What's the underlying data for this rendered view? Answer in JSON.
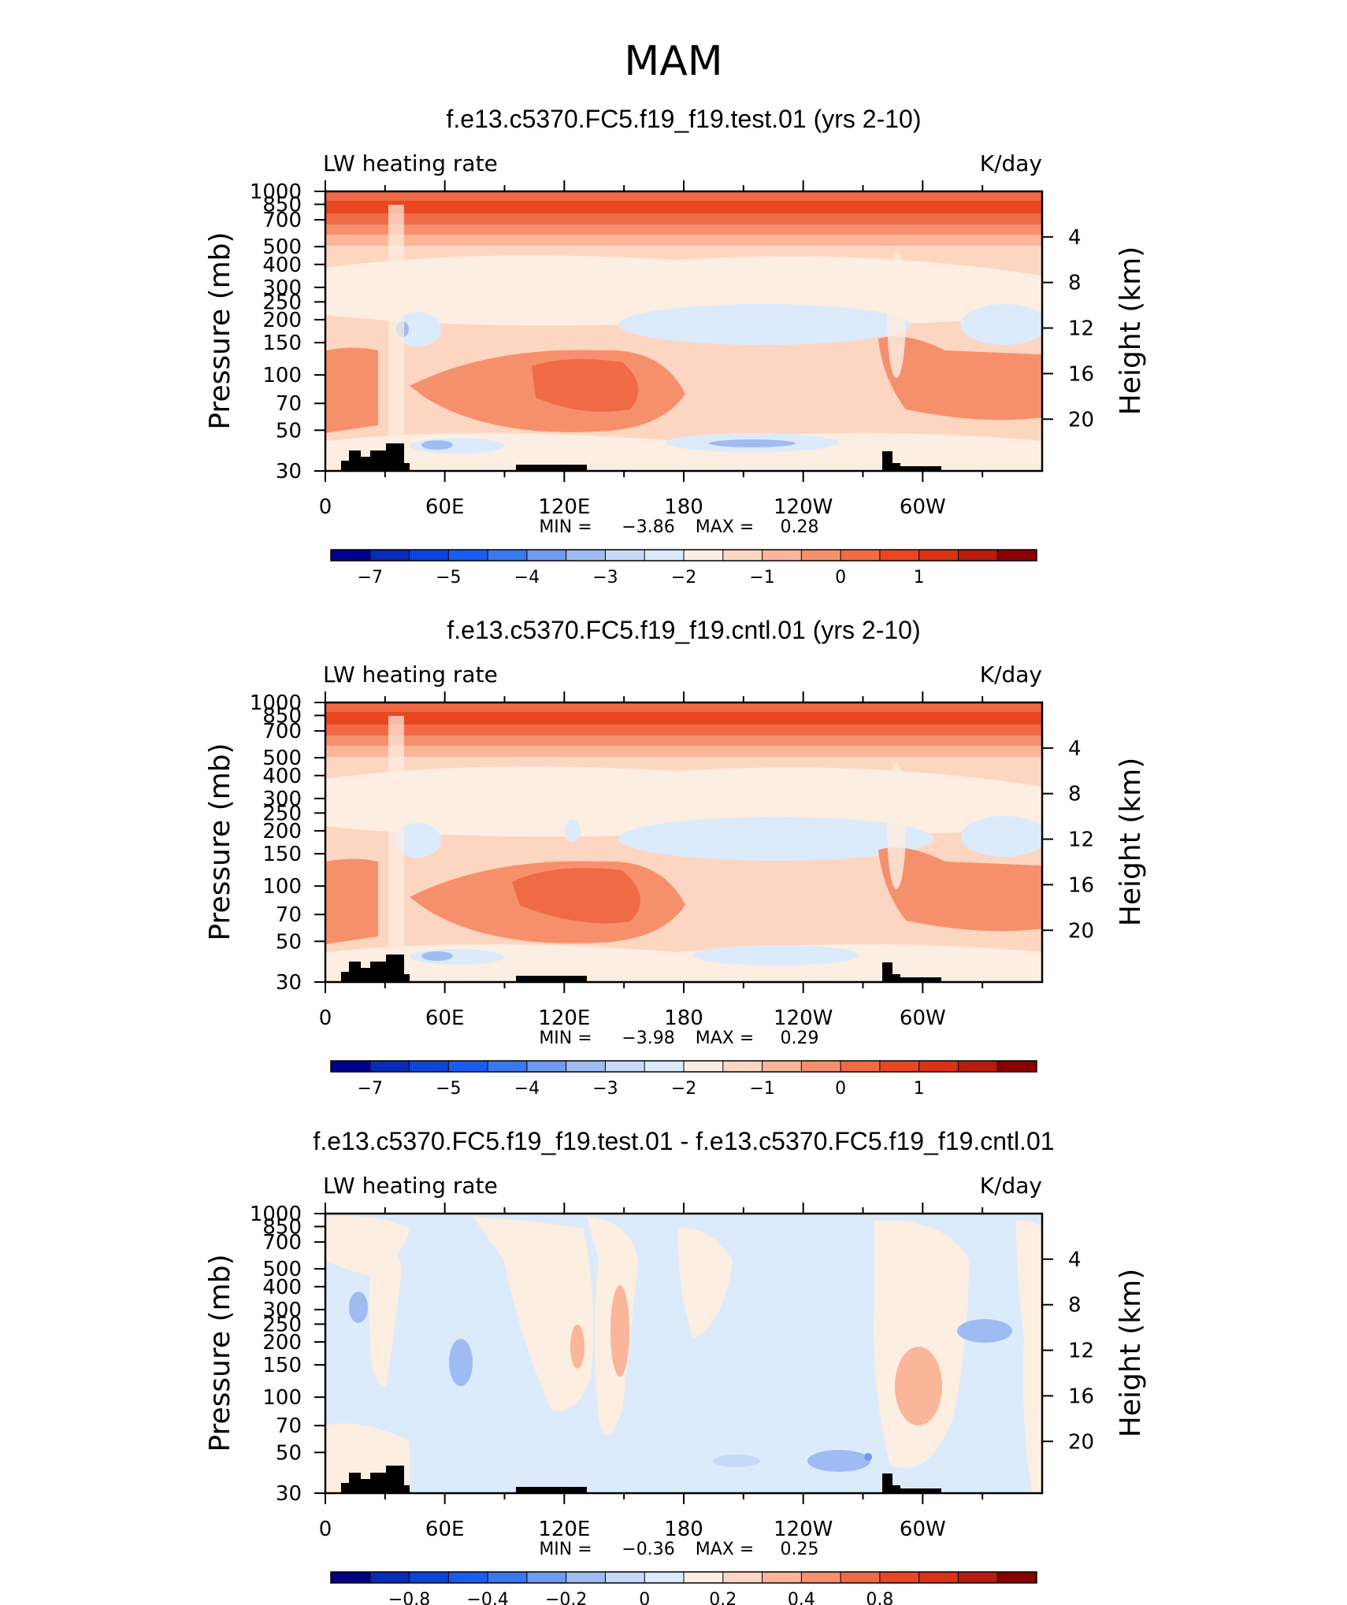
{
  "figure_title": "MAM",
  "chart_data": [
    {
      "type": "heatmap",
      "title": "f.e13.c5370.FC5.f19_f19.test.01 (yrs 2-10)",
      "left_label": "LW heating rate",
      "right_label": "K/day",
      "ylabel": "Pressure (mb)",
      "y2label": "Height (km)",
      "x_ticks": [
        "0",
        "60E",
        "120E",
        "180",
        "120W",
        "60W"
      ],
      "y_ticks": [
        "30",
        "50",
        "70",
        "100",
        "150",
        "200",
        "250",
        "300",
        "400",
        "500",
        "700",
        "850",
        "1000"
      ],
      "y2_ticks": [
        "20",
        "16",
        "12",
        "8",
        "4"
      ],
      "stats": {
        "min_label": "MIN =",
        "min": "−3.86",
        "max_label": "MAX =",
        "max": "0.28"
      },
      "colorbar": {
        "levels": [
          -8,
          -7.5,
          -7,
          -6.5,
          -6,
          -5.5,
          -5,
          -4.5,
          -4,
          -3.5,
          -3,
          -2.5,
          -2,
          -1.5,
          -1,
          -0.5,
          0,
          0.5,
          1,
          1.5,
          2
        ],
        "colors": [
          "#00008b",
          "#0a2ab8",
          "#0d44d8",
          "#1a5cf0",
          "#3a78ee",
          "#6e9af0",
          "#9ebcf2",
          "#c6d9f7",
          "#dcebfb",
          "#fdeee2",
          "#fdd6c2",
          "#fbb598",
          "#f6906c",
          "#f06a45",
          "#e84722",
          "#d93214",
          "#b71c0f",
          "#8b0000"
        ],
        "labels": [
          "−7",
          "−5",
          "−4",
          "−3",
          "−2",
          "−1",
          "0",
          "1"
        ]
      }
    },
    {
      "type": "heatmap",
      "title": "f.e13.c5370.FC5.f19_f19.cntl.01 (yrs 2-10)",
      "left_label": "LW heating rate",
      "right_label": "K/day",
      "ylabel": "Pressure (mb)",
      "y2label": "Height (km)",
      "x_ticks": [
        "0",
        "60E",
        "120E",
        "180",
        "120W",
        "60W"
      ],
      "y_ticks": [
        "30",
        "50",
        "70",
        "100",
        "150",
        "200",
        "250",
        "300",
        "400",
        "500",
        "700",
        "850",
        "1000"
      ],
      "y2_ticks": [
        "20",
        "16",
        "12",
        "8",
        "4"
      ],
      "stats": {
        "min_label": "MIN =",
        "min": "−3.98",
        "max_label": "MAX =",
        "max": "0.29"
      },
      "colorbar": {
        "labels": [
          "−7",
          "−5",
          "−4",
          "−3",
          "−2",
          "−1",
          "0",
          "1"
        ]
      }
    },
    {
      "type": "heatmap",
      "title": "f.e13.c5370.FC5.f19_f19.test.01 - f.e13.c5370.FC5.f19_f19.cntl.01",
      "left_label": "LW heating rate",
      "right_label": "K/day",
      "ylabel": "Pressure (mb)",
      "y2label": "Height (km)",
      "x_ticks": [
        "0",
        "60E",
        "120E",
        "180",
        "120W",
        "60W"
      ],
      "y_ticks": [
        "30",
        "50",
        "70",
        "100",
        "150",
        "200",
        "250",
        "300",
        "400",
        "500",
        "700",
        "850",
        "1000"
      ],
      "y2_ticks": [
        "20",
        "16",
        "12",
        "8",
        "4"
      ],
      "stats": {
        "min_label": "MIN =",
        "min": "−0.36",
        "max_label": "MAX =",
        "max": "0.25"
      },
      "colorbar": {
        "labels": [
          "−0.8",
          "−0.4",
          "−0.2",
          "0",
          "0.2",
          "0.4",
          "0.8"
        ]
      }
    }
  ]
}
